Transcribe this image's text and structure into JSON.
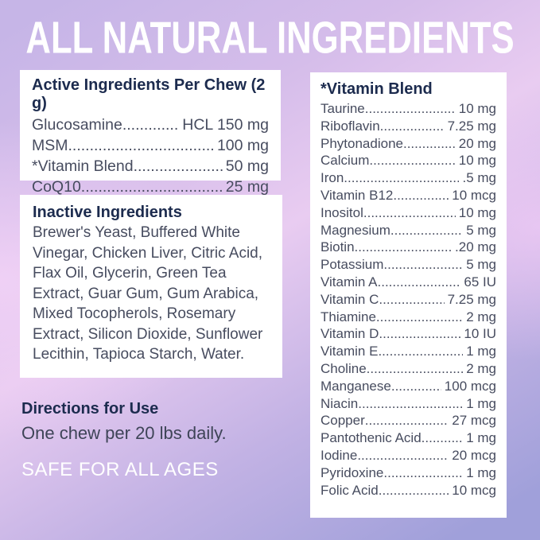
{
  "page": {
    "title": "ALL NATURAL INGREDIENTS"
  },
  "active_ingredients": {
    "heading": "Active Ingredients Per Chew (2 g)",
    "rows": [
      {
        "name": "Glucosamine",
        "value": "HCL 150 mg"
      },
      {
        "name": "MSM",
        "value": "100 mg"
      },
      {
        "name": "*Vitamin Blend",
        "value": "50 mg"
      },
      {
        "name": "CoQ10",
        "value": "25 mg"
      }
    ]
  },
  "inactive_ingredients": {
    "heading": "Inactive Ingredients",
    "body": "Brewer's Yeast, Buffered White Vinegar, Chicken Liver, Citric Acid, Flax Oil, Glycerin, Green Tea Extract, Guar Gum, Gum Arabica, Mixed Tocopherols, Rosemary Extract, Silicon Dioxide, Sunflower Lecithin, Tapioca Starch, Water."
  },
  "vitamin_blend": {
    "heading": "*Vitamin Blend",
    "rows": [
      {
        "name": "Taurine",
        "value": "10 mg"
      },
      {
        "name": "Riboflavin",
        "value": "7.25 mg"
      },
      {
        "name": "Phytonadione",
        "value": "20 mg"
      },
      {
        "name": "Calcium",
        "value": "10 mg"
      },
      {
        "name": "Iron",
        "value": ".5 mg"
      },
      {
        "name": "Vitamin B12",
        "value": "10 mcg"
      },
      {
        "name": "Inositol",
        "value": "10 mg"
      },
      {
        "name": "Magnesium",
        "value": "5 mg"
      },
      {
        "name": "Biotin",
        "value": ".20 mg"
      },
      {
        "name": "Potassium",
        "value": "5 mg"
      },
      {
        "name": "Vitamin A",
        "value": "65 IU"
      },
      {
        "name": "Vitamin C",
        "value": "7.25 mg"
      },
      {
        "name": "Thiamine",
        "value": "2 mg"
      },
      {
        "name": "Vitamin D",
        "value": "10 IU"
      },
      {
        "name": "Vitamin E",
        "value": "1 mg"
      },
      {
        "name": "Choline",
        "value": "2 mg"
      },
      {
        "name": "Manganese",
        "value": "100 mcg"
      },
      {
        "name": "Niacin",
        "value": "1 mg"
      },
      {
        "name": "Copper",
        "value": "27 mcg"
      },
      {
        "name": "Pantothenic Acid",
        "value": "1 mg"
      },
      {
        "name": "Iodine",
        "value": "20 mcg"
      },
      {
        "name": "Pyridoxine",
        "value": "1 mg"
      },
      {
        "name": "Folic Acid",
        "value": "10 mcg"
      }
    ]
  },
  "directions": {
    "heading": "Directions for Use",
    "text": "One chew per 20 lbs daily.",
    "note": "SAFE FOR ALL AGES"
  },
  "colors": {
    "background_top": "#c6b5e7",
    "background_pink": "#e9ccf1",
    "background_bottom": "#a0a0da",
    "card_background": "#ffffff",
    "heading_navy": "#1c2b4e",
    "body_text": "#474c5f",
    "title_white": "#ffffff"
  }
}
